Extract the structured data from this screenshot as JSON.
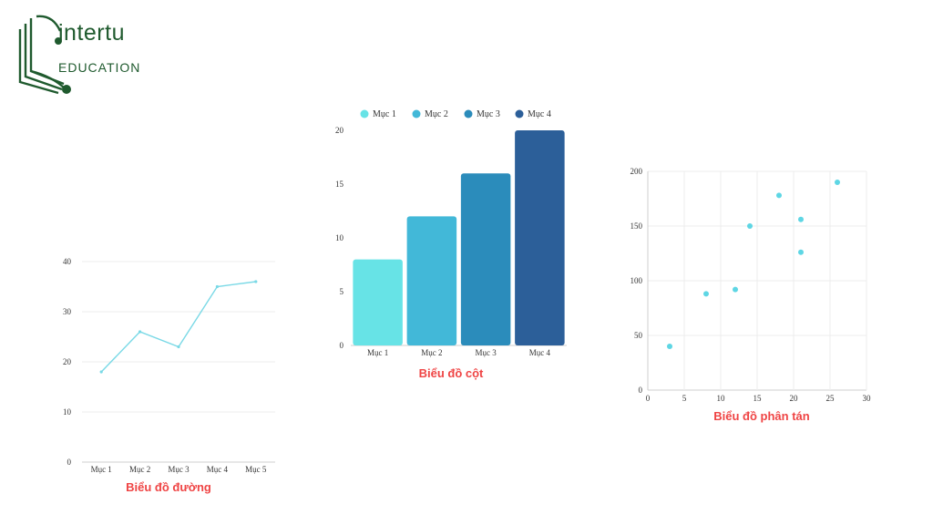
{
  "logo": {
    "name": "intertu",
    "sub": "EDUCATION",
    "color": "#1f5a2e"
  },
  "chart_data": [
    {
      "type": "line",
      "title": "Biểu đồ đường",
      "categories": [
        "Mục 1",
        "Mục 2",
        "Mục 3",
        "Mục 4",
        "Mục 5"
      ],
      "values": [
        18,
        26,
        23,
        35,
        36
      ],
      "ylim": [
        0,
        40
      ],
      "yticks": [
        0,
        10,
        20,
        30,
        40
      ],
      "color": "#7ad9e6",
      "grid": true
    },
    {
      "type": "bar",
      "title": "Biểu đồ cột",
      "categories": [
        "Mục 1",
        "Mục 2",
        "Mục 3",
        "Mục 4"
      ],
      "values": [
        8,
        12,
        16,
        20
      ],
      "colors": [
        "#67e3e6",
        "#42b8d8",
        "#2b8cbb",
        "#2c5f99"
      ],
      "ylim": [
        0,
        20
      ],
      "yticks": [
        0,
        5,
        10,
        15,
        20
      ],
      "legend": [
        "Mục 1",
        "Mục 2",
        "Mục 3",
        "Mục 4"
      ],
      "legend_position": "top"
    },
    {
      "type": "scatter",
      "title": "Biểu đồ phân tán",
      "points": [
        [
          3,
          40
        ],
        [
          8,
          88
        ],
        [
          12,
          92
        ],
        [
          14,
          150
        ],
        [
          18,
          178
        ],
        [
          21,
          156
        ],
        [
          21,
          126
        ],
        [
          26,
          190
        ]
      ],
      "xlim": [
        0,
        30
      ],
      "ylim": [
        0,
        200
      ],
      "xticks": [
        0,
        5,
        10,
        15,
        20,
        25,
        30
      ],
      "yticks": [
        0,
        50,
        100,
        150,
        200
      ],
      "color": "#5ed6e4",
      "grid": true
    }
  ]
}
